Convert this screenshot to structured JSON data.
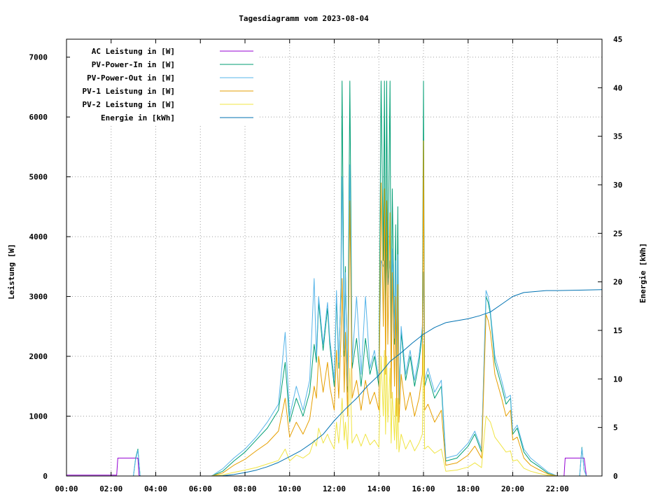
{
  "chart_data": {
    "type": "line",
    "title": "Tagesdiagramm vom 2023-08-04",
    "ylabel": "Leistung [W]",
    "y2label": "Energie [kWh]",
    "xlim": [
      0,
      24
    ],
    "ylim": [
      0,
      7300
    ],
    "y2lim": [
      0,
      45
    ],
    "x_ticks": [
      {
        "v": 0,
        "label": "00:00"
      },
      {
        "v": 2,
        "label": "02:00"
      },
      {
        "v": 4,
        "label": "04:00"
      },
      {
        "v": 6,
        "label": "06:00"
      },
      {
        "v": 8,
        "label": "08:00"
      },
      {
        "v": 10,
        "label": "10:00"
      },
      {
        "v": 12,
        "label": "12:00"
      },
      {
        "v": 14,
        "label": "14:00"
      },
      {
        "v": 16,
        "label": "16:00"
      },
      {
        "v": 18,
        "label": "18:00"
      },
      {
        "v": 20,
        "label": "20:00"
      },
      {
        "v": 22,
        "label": "22:00"
      }
    ],
    "y_ticks": [
      {
        "v": 0,
        "label": "0"
      },
      {
        "v": 1000,
        "label": "1000"
      },
      {
        "v": 2000,
        "label": "2000"
      },
      {
        "v": 3000,
        "label": "3000"
      },
      {
        "v": 4000,
        "label": "4000"
      },
      {
        "v": 5000,
        "label": "5000"
      },
      {
        "v": 6000,
        "label": "6000"
      },
      {
        "v": 7000,
        "label": "7000"
      }
    ],
    "y2_ticks": [
      {
        "v": 0,
        "label": "0"
      },
      {
        "v": 5,
        "label": "5"
      },
      {
        "v": 10,
        "label": "10"
      },
      {
        "v": 15,
        "label": "15"
      },
      {
        "v": 20,
        "label": "20"
      },
      {
        "v": 25,
        "label": "25"
      },
      {
        "v": 30,
        "label": "30"
      },
      {
        "v": 35,
        "label": "35"
      },
      {
        "v": 40,
        "label": "40"
      },
      {
        "v": 45,
        "label": "45"
      }
    ],
    "grid": true,
    "legend_position": "top-left",
    "series": [
      {
        "name": "AC Leistung in [W]",
        "color": "#9400d3",
        "axis": "y1",
        "x": [
          0,
          1,
          2.0,
          2.25,
          2.3,
          3.2,
          3.25,
          3.3,
          5,
          6.5,
          6.6,
          22,
          22.3,
          22.35,
          23.2,
          23.3,
          24
        ],
        "y": [
          15,
          15,
          15,
          15,
          300,
          300,
          15,
          0,
          0,
          0,
          0,
          0,
          0,
          300,
          300,
          0,
          0
        ]
      },
      {
        "name": "PV-Power-In in [W]",
        "color": "#009e73",
        "axis": "y1",
        "x": [
          0,
          3.0,
          3.1,
          3.2,
          3.3,
          6.5,
          7.0,
          7.5,
          8.0,
          8.5,
          9.0,
          9.5,
          9.8,
          10.0,
          10.3,
          10.6,
          10.9,
          11.1,
          11.2,
          11.3,
          11.5,
          11.7,
          11.8,
          12.0,
          12.1,
          12.2,
          12.3,
          12.35,
          12.45,
          12.5,
          12.6,
          12.7,
          12.8,
          13.0,
          13.2,
          13.4,
          13.6,
          13.8,
          14.0,
          14.1,
          14.2,
          14.25,
          14.3,
          14.35,
          14.4,
          14.5,
          14.55,
          14.6,
          14.7,
          14.75,
          14.8,
          14.85,
          14.9,
          15.0,
          15.2,
          15.4,
          15.6,
          15.8,
          15.95,
          16.0,
          16.05,
          16.2,
          16.5,
          16.8,
          17.0,
          17.5,
          18.0,
          18.3,
          18.6,
          18.8,
          18.9,
          19.0,
          19.2,
          19.5,
          19.7,
          19.9,
          20.0,
          20.2,
          20.5,
          20.8,
          21.2,
          21.6,
          22.0,
          23.0,
          23.1,
          23.2,
          23.3,
          24
        ],
        "y": [
          0,
          0,
          300,
          450,
          0,
          0,
          80,
          250,
          400,
          600,
          800,
          1100,
          1900,
          900,
          1300,
          1000,
          1400,
          2200,
          1900,
          2900,
          2100,
          2800,
          2200,
          1500,
          3000,
          1800,
          3200,
          6600,
          2000,
          3500,
          1400,
          6600,
          1800,
          2300,
          1500,
          2300,
          1700,
          2000,
          1500,
          6600,
          3600,
          6600,
          2500,
          6600,
          3200,
          6600,
          1800,
          4800,
          2200,
          4200,
          1500,
          4500,
          1200,
          2400,
          1600,
          2000,
          1500,
          1900,
          2400,
          6600,
          1500,
          1700,
          1300,
          1500,
          250,
          300,
          500,
          700,
          400,
          3000,
          2900,
          2700,
          1900,
          1500,
          1200,
          1300,
          700,
          800,
          400,
          250,
          150,
          40,
          0,
          0,
          480,
          100,
          0,
          0
        ]
      },
      {
        "name": "PV-Power-Out in [W]",
        "color": "#56b4e9",
        "axis": "y1",
        "x": [
          0,
          3.0,
          3.1,
          3.2,
          3.3,
          6.5,
          7.0,
          7.5,
          8.0,
          8.5,
          9.0,
          9.5,
          9.8,
          10.0,
          10.3,
          10.6,
          10.9,
          11.1,
          11.2,
          11.3,
          11.5,
          11.7,
          11.8,
          12.0,
          12.1,
          12.2,
          12.3,
          12.35,
          12.45,
          12.5,
          12.6,
          12.7,
          12.8,
          13.0,
          13.2,
          13.4,
          13.6,
          13.8,
          14.0,
          14.1,
          14.2,
          14.25,
          14.3,
          14.35,
          14.4,
          14.5,
          14.55,
          14.6,
          14.7,
          14.75,
          14.8,
          14.85,
          14.9,
          15.0,
          15.2,
          15.4,
          15.6,
          15.8,
          15.95,
          16.0,
          16.05,
          16.2,
          16.5,
          16.8,
          17.0,
          17.5,
          18.0,
          18.3,
          18.6,
          18.8,
          18.9,
          19.0,
          19.2,
          19.5,
          19.7,
          19.9,
          20.0,
          20.2,
          20.5,
          20.8,
          21.2,
          21.6,
          22.0,
          23.0,
          23.1,
          23.2,
          23.3,
          24
        ],
        "y": [
          0,
          0,
          280,
          430,
          0,
          0,
          120,
          300,
          450,
          650,
          900,
          1200,
          2400,
          1000,
          1500,
          1100,
          1600,
          3300,
          2000,
          3000,
          2200,
          2900,
          2300,
          1600,
          3100,
          1900,
          3100,
          5000,
          2100,
          3400,
          1500,
          5200,
          1900,
          3000,
          1700,
          3000,
          1800,
          2100,
          1600,
          3600,
          3500,
          3600,
          2600,
          3700,
          3200,
          3600,
          1900,
          3800,
          2300,
          3600,
          1600,
          3700,
          1300,
          2500,
          1700,
          2100,
          1600,
          2000,
          2500,
          3400,
          1600,
          1800,
          1400,
          1600,
          300,
          350,
          550,
          750,
          450,
          3100,
          3000,
          2750,
          2000,
          1600,
          1300,
          1350,
          750,
          850,
          450,
          300,
          180,
          60,
          0,
          0,
          470,
          100,
          0,
          0
        ]
      },
      {
        "name": "PV-1 Leistung in [W]",
        "color": "#e69f00",
        "axis": "y1",
        "x": [
          0,
          6.5,
          7.0,
          7.5,
          8.0,
          8.5,
          9.0,
          9.5,
          9.8,
          10.0,
          10.3,
          10.6,
          10.9,
          11.1,
          11.2,
          11.3,
          11.5,
          11.7,
          11.8,
          12.0,
          12.1,
          12.2,
          12.3,
          12.35,
          12.45,
          12.5,
          12.6,
          12.7,
          12.8,
          13.0,
          13.2,
          13.4,
          13.6,
          13.8,
          14.0,
          14.1,
          14.2,
          14.25,
          14.3,
          14.35,
          14.4,
          14.5,
          14.55,
          14.6,
          14.7,
          14.75,
          14.8,
          14.85,
          14.9,
          15.0,
          15.2,
          15.4,
          15.6,
          15.8,
          15.95,
          16.0,
          16.05,
          16.2,
          16.5,
          16.8,
          17.0,
          17.5,
          18.0,
          18.3,
          18.6,
          18.8,
          18.9,
          19.0,
          19.2,
          19.5,
          19.7,
          19.9,
          20.0,
          20.2,
          20.5,
          20.8,
          21.2,
          21.6,
          22.0,
          24
        ],
        "y": [
          0,
          0,
          50,
          180,
          280,
          420,
          550,
          750,
          1300,
          650,
          900,
          700,
          950,
          1500,
          1300,
          2000,
          1400,
          1900,
          1500,
          1100,
          2100,
          1300,
          2300,
          3300,
          1400,
          2400,
          1000,
          4600,
          1300,
          1600,
          1100,
          1600,
          1200,
          1400,
          1100,
          4900,
          2500,
          4800,
          1700,
          4600,
          2200,
          4400,
          1300,
          3400,
          1500,
          3000,
          1000,
          3200,
          900,
          1700,
          1100,
          1400,
          1000,
          1300,
          1700,
          5600,
          1100,
          1200,
          900,
          1100,
          180,
          220,
          350,
          500,
          300,
          2700,
          2600,
          2400,
          1700,
          1300,
          1000,
          1100,
          600,
          650,
          300,
          180,
          100,
          30,
          0,
          0
        ]
      },
      {
        "name": "PV-2 Leistung in [W]",
        "color": "#f0e442",
        "axis": "y1",
        "x": [
          0,
          6.5,
          7.0,
          7.5,
          8.0,
          8.5,
          9.0,
          9.5,
          9.8,
          10.0,
          10.3,
          10.6,
          10.9,
          11.1,
          11.2,
          11.3,
          11.5,
          11.7,
          11.8,
          12.0,
          12.1,
          12.2,
          12.3,
          12.35,
          12.45,
          12.5,
          12.6,
          12.7,
          12.8,
          13.0,
          13.2,
          13.4,
          13.6,
          13.8,
          14.0,
          14.1,
          14.2,
          14.25,
          14.3,
          14.35,
          14.4,
          14.5,
          14.55,
          14.6,
          14.7,
          14.75,
          14.8,
          14.85,
          14.9,
          15.0,
          15.2,
          15.4,
          15.6,
          15.8,
          15.95,
          16.0,
          16.05,
          16.2,
          16.5,
          16.8,
          17.0,
          17.5,
          18.0,
          18.3,
          18.6,
          18.8,
          18.9,
          19.0,
          19.2,
          19.5,
          19.7,
          19.9,
          20.0,
          20.2,
          20.5,
          20.8,
          21.2,
          21.6,
          22.0,
          24
        ],
        "y": [
          0,
          0,
          20,
          60,
          100,
          140,
          200,
          260,
          450,
          250,
          350,
          300,
          380,
          600,
          500,
          800,
          550,
          700,
          600,
          450,
          900,
          550,
          1000,
          1300,
          600,
          900,
          450,
          1800,
          550,
          700,
          500,
          700,
          520,
          600,
          480,
          2000,
          1000,
          2100,
          700,
          2000,
          900,
          1800,
          550,
          1400,
          600,
          1300,
          450,
          1300,
          400,
          700,
          450,
          600,
          420,
          550,
          700,
          2200,
          450,
          500,
          380,
          450,
          80,
          100,
          150,
          220,
          140,
          1000,
          950,
          900,
          650,
          500,
          400,
          420,
          250,
          270,
          130,
          80,
          40,
          10,
          0,
          0
        ]
      },
      {
        "name": "Energie in [kWh]",
        "color": "#0072b2",
        "axis": "y2",
        "x": [
          0,
          6.5,
          7.0,
          7.5,
          8.0,
          8.5,
          9.0,
          9.5,
          10.0,
          10.5,
          11.0,
          11.5,
          12.0,
          12.5,
          13.0,
          13.5,
          14.0,
          14.5,
          15.0,
          15.5,
          16.0,
          16.5,
          17.0,
          17.5,
          18.0,
          18.5,
          19.0,
          19.5,
          20.0,
          20.5,
          21.0,
          21.5,
          22.0,
          23.0,
          24
        ],
        "y": [
          0,
          0,
          0.03,
          0.15,
          0.35,
          0.6,
          0.95,
          1.4,
          2.0,
          2.6,
          3.4,
          4.3,
          5.7,
          6.9,
          8.0,
          9.3,
          10.4,
          11.8,
          12.7,
          13.7,
          14.6,
          15.3,
          15.8,
          16.0,
          16.2,
          16.5,
          16.9,
          17.7,
          18.5,
          18.9,
          19.0,
          19.1,
          19.1,
          19.15,
          19.2
        ]
      }
    ]
  }
}
